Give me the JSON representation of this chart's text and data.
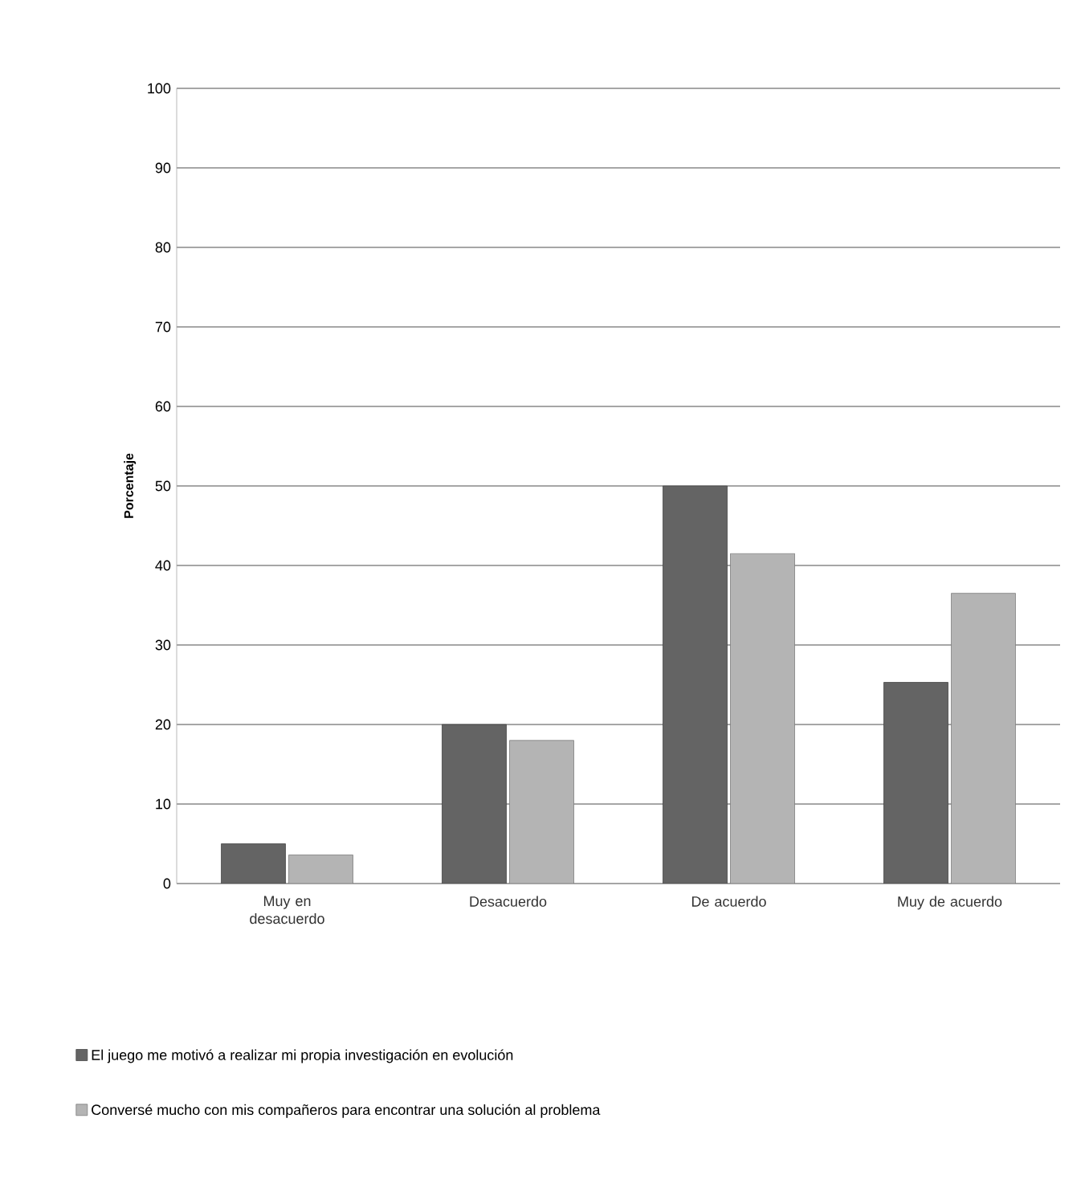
{
  "chart_data": {
    "type": "bar",
    "ylabel": "Porcentaje",
    "categories": [
      "Muy en desacuerdo",
      "Desacuerdo",
      "De acuerdo",
      "Muy de acuerdo"
    ],
    "series": [
      {
        "name": "El juego me motivó a realizar mi propia investigación en evolución",
        "color": "#646464",
        "values": [
          5,
          20,
          50,
          25.3
        ]
      },
      {
        "name": "Conversé mucho con mis compañeros para encontrar una solución al problema",
        "color": "#b4b4b4",
        "values": [
          3.6,
          18,
          41.5,
          36.5
        ]
      }
    ],
    "ylim": [
      0,
      100
    ],
    "yticks": [
      0,
      10,
      20,
      30,
      40,
      50,
      60,
      70,
      80,
      90,
      100
    ],
    "grid": "y",
    "legend": "bottom"
  }
}
